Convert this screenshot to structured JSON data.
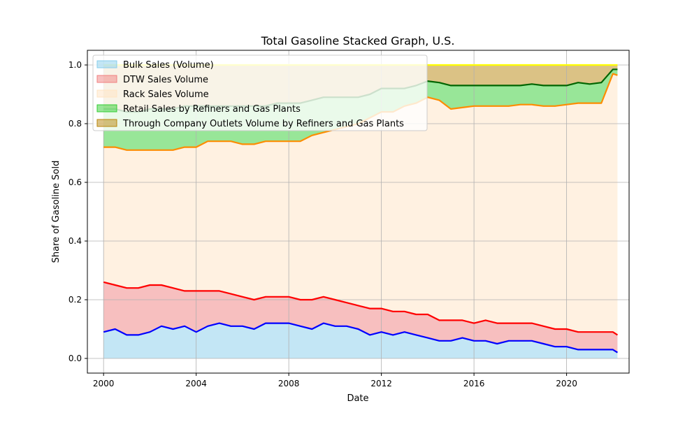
{
  "chart_data": {
    "type": "area",
    "title": "Total Gasoline Stacked Graph, U.S.",
    "xlabel": "Date",
    "ylabel": "Share of Gasoline Sold",
    "xlim": [
      1999.3,
      2022.7
    ],
    "ylim": [
      -0.05,
      1.05
    ],
    "x_ticks": [
      2000,
      2004,
      2008,
      2012,
      2016,
      2020
    ],
    "y_ticks": [
      0.0,
      0.2,
      0.4,
      0.6,
      0.8,
      1.0
    ],
    "grid": true,
    "legend_position": "top-left",
    "x": [
      2000.0,
      2000.5,
      2001.0,
      2001.5,
      2002.0,
      2002.5,
      2003.0,
      2003.5,
      2004.0,
      2004.5,
      2005.0,
      2005.5,
      2006.0,
      2006.5,
      2007.0,
      2007.5,
      2008.0,
      2008.5,
      2009.0,
      2009.5,
      2010.0,
      2010.5,
      2011.0,
      2011.5,
      2012.0,
      2012.5,
      2013.0,
      2013.5,
      2014.0,
      2014.5,
      2015.0,
      2015.5,
      2016.0,
      2016.5,
      2017.0,
      2017.5,
      2018.0,
      2018.5,
      2019.0,
      2019.5,
      2020.0,
      2020.5,
      2021.0,
      2021.5,
      2022.0,
      2022.2
    ],
    "series": [
      {
        "name": "Bulk Sales (Volume)",
        "fill": "#87ceeb",
        "line": "#0000ff",
        "values": [
          0.09,
          0.1,
          0.08,
          0.08,
          0.09,
          0.11,
          0.1,
          0.11,
          0.09,
          0.11,
          0.12,
          0.11,
          0.11,
          0.1,
          0.12,
          0.12,
          0.12,
          0.11,
          0.1,
          0.12,
          0.11,
          0.11,
          0.1,
          0.08,
          0.09,
          0.08,
          0.09,
          0.08,
          0.07,
          0.06,
          0.06,
          0.07,
          0.06,
          0.06,
          0.05,
          0.06,
          0.06,
          0.06,
          0.05,
          0.04,
          0.04,
          0.03,
          0.03,
          0.03,
          0.03,
          0.02
        ]
      },
      {
        "name": "DTW Sales Volume",
        "fill": "#f08080",
        "line": "#ff0000",
        "values": [
          0.26,
          0.25,
          0.24,
          0.24,
          0.25,
          0.25,
          0.24,
          0.23,
          0.23,
          0.23,
          0.23,
          0.22,
          0.21,
          0.2,
          0.21,
          0.21,
          0.21,
          0.2,
          0.2,
          0.21,
          0.2,
          0.19,
          0.18,
          0.17,
          0.17,
          0.16,
          0.16,
          0.15,
          0.15,
          0.13,
          0.13,
          0.13,
          0.12,
          0.13,
          0.12,
          0.12,
          0.12,
          0.12,
          0.11,
          0.1,
          0.1,
          0.09,
          0.09,
          0.09,
          0.09,
          0.08
        ]
      },
      {
        "name": "Rack Sales Volume",
        "fill": "#ffe4c4",
        "line": "#ff8c00",
        "values": [
          0.72,
          0.72,
          0.71,
          0.71,
          0.71,
          0.71,
          0.71,
          0.72,
          0.72,
          0.74,
          0.74,
          0.74,
          0.73,
          0.73,
          0.74,
          0.74,
          0.74,
          0.74,
          0.76,
          0.77,
          0.78,
          0.79,
          0.8,
          0.82,
          0.84,
          0.84,
          0.86,
          0.87,
          0.89,
          0.88,
          0.85,
          0.855,
          0.86,
          0.86,
          0.86,
          0.86,
          0.865,
          0.865,
          0.86,
          0.86,
          0.865,
          0.87,
          0.87,
          0.87,
          0.97,
          0.965
        ]
      },
      {
        "name": "Retail Sales by Refiners and Gas Plants",
        "fill": "#32cd32",
        "line": "#006400",
        "values": [
          0.85,
          0.85,
          0.84,
          0.84,
          0.85,
          0.85,
          0.85,
          0.86,
          0.86,
          0.86,
          0.86,
          0.86,
          0.86,
          0.86,
          0.86,
          0.87,
          0.87,
          0.87,
          0.88,
          0.89,
          0.89,
          0.89,
          0.89,
          0.9,
          0.92,
          0.92,
          0.92,
          0.93,
          0.945,
          0.94,
          0.93,
          0.93,
          0.93,
          0.93,
          0.93,
          0.93,
          0.93,
          0.935,
          0.93,
          0.93,
          0.93,
          0.94,
          0.935,
          0.94,
          0.985,
          0.985
        ]
      },
      {
        "name": "Through Company Outlets Volume by Refiners and Gas Plants",
        "fill": "#b8860b",
        "line": "#ffff00",
        "values": [
          1.0,
          1.0,
          1.0,
          1.0,
          1.0,
          1.0,
          1.0,
          1.0,
          1.0,
          1.0,
          1.0,
          1.0,
          1.0,
          1.0,
          1.0,
          1.0,
          1.0,
          1.0,
          1.0,
          1.0,
          1.0,
          1.0,
          1.0,
          1.0,
          1.0,
          1.0,
          1.0,
          1.0,
          1.0,
          1.0,
          1.0,
          1.0,
          1.0,
          1.0,
          1.0,
          1.0,
          1.0,
          1.0,
          1.0,
          1.0,
          1.0,
          1.0,
          1.0,
          1.0,
          1.0,
          1.0
        ]
      }
    ]
  }
}
